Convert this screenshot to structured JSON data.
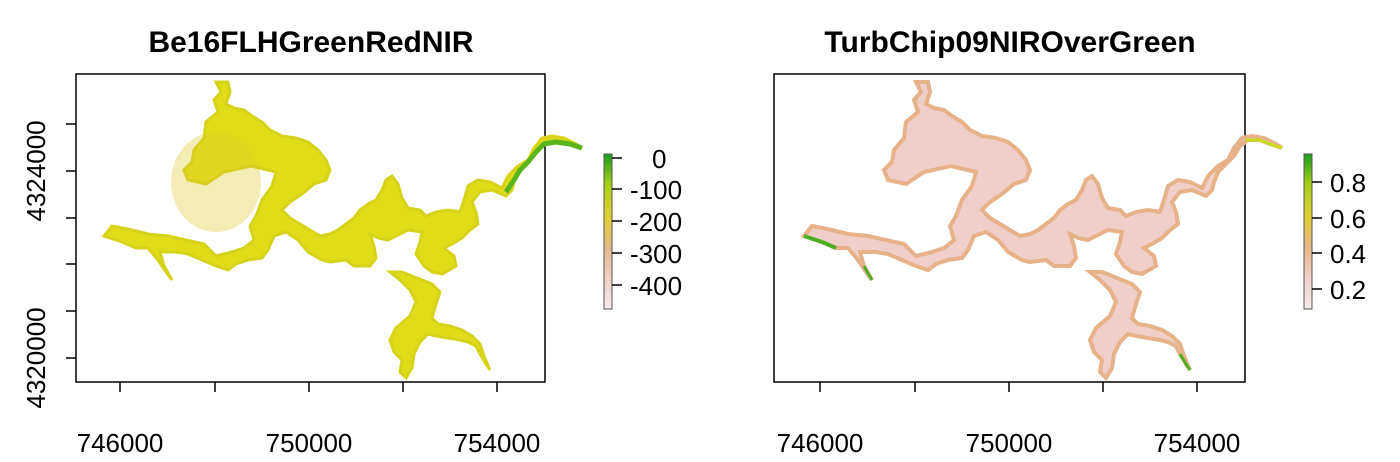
{
  "panels": [
    {
      "title": "Be16FLHGreenRedNIR",
      "x_ticks": [
        "746000",
        "750000",
        "754000"
      ],
      "y_ticks": [
        "4320000",
        "4324000"
      ],
      "legend_ticks": [
        "0",
        "-100",
        "-200",
        "-300",
        "-400"
      ],
      "fill_color": "#e0dd18",
      "edge_color": "#d6d21a",
      "accent_color": "#5ab41c"
    },
    {
      "title": "TurbChip09NIROverGreen",
      "x_ticks": [
        "746000",
        "750000",
        "754000"
      ],
      "legend_ticks": [
        "0.8",
        "0.6",
        "0.4",
        "0.2"
      ],
      "fill_color": "#f0cfc8",
      "edge_color": "#e6b28a",
      "accent_color": "#4fae25"
    }
  ],
  "legend_colors": [
    "#1a9f1a",
    "#6cc21a",
    "#c8dc1a",
    "#e8c84a",
    "#eab898",
    "#f0d8d2",
    "#f4ecec"
  ]
}
